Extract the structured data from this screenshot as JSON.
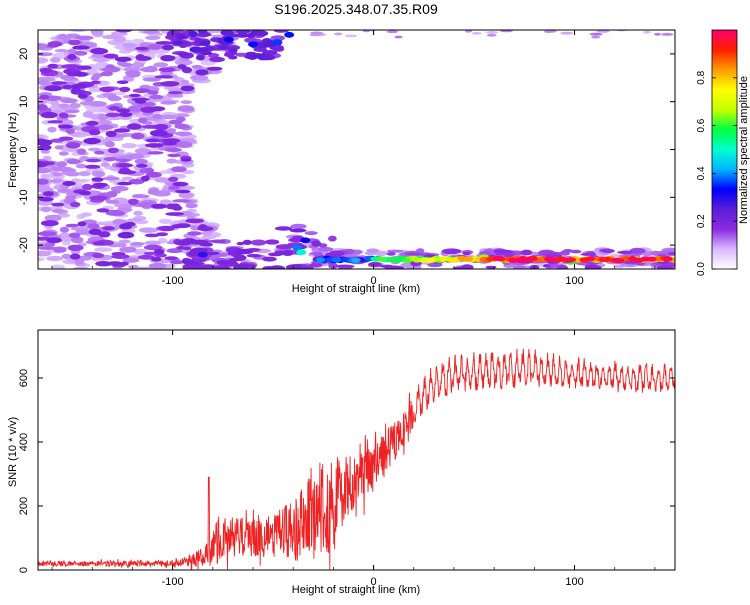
{
  "title": "S196.2025.348.07.35.R09",
  "chart_data": [
    {
      "type": "heatmap",
      "panel": "spectrogram",
      "xlabel": "Height of straight line (km)",
      "ylabel": "Frequency (Hz)",
      "xlim": [
        -167,
        150
      ],
      "ylim": [
        -25,
        25
      ],
      "xticks": [
        -100,
        0,
        100
      ],
      "yticks": [
        -20,
        -10,
        0,
        10,
        20
      ],
      "colorbar": {
        "label": "Normalized spectral amplitude",
        "range": [
          0,
          1
        ],
        "ticks": [
          0.0,
          0.2,
          0.4,
          0.6,
          0.8
        ],
        "colormap": [
          "#ffffff",
          "#d9b8ff",
          "#8a2be2",
          "#5a1ed6",
          "#0000ff",
          "#00b4ff",
          "#00ffd0",
          "#00ff40",
          "#c8ff00",
          "#ffff00",
          "#ff9b00",
          "#ff2000",
          "#ff0070"
        ]
      },
      "features": [
        {
          "name": "low-altitude broadband energy",
          "x_range": [
            -167,
            -95
          ],
          "freq_range": [
            -25,
            25
          ],
          "amplitude": 0.12
        },
        {
          "name": "upper band edge fragments",
          "x_range": [
            -100,
            -40
          ],
          "freq_range": [
            18,
            25
          ],
          "amplitude": 0.2
        },
        {
          "name": "strong low-frequency line",
          "x_range": [
            -30,
            150
          ],
          "freq": -23,
          "amplitude_range": [
            0.2,
            0.95
          ]
        }
      ]
    },
    {
      "type": "line",
      "panel": "snr",
      "xlabel": "Height of straight line (km)",
      "ylabel": "SNR (10 * v/v)",
      "xlim": [
        -167,
        150
      ],
      "ylim": [
        0,
        750
      ],
      "xticks": [
        -100,
        0,
        100
      ],
      "yticks": [
        0,
        200,
        400,
        600
      ],
      "color": "#ee2222",
      "envelope": {
        "x": [
          -167,
          -100,
          -92,
          -85,
          -78,
          -70,
          -60,
          -50,
          -40,
          -35,
          -30,
          -25,
          -20,
          -15,
          -10,
          -5,
          0,
          5,
          10,
          15,
          20,
          25,
          30,
          40,
          50,
          60,
          70,
          80,
          90,
          100,
          110,
          120,
          130,
          140,
          150
        ],
        "mean": [
          20,
          20,
          25,
          40,
          85,
          105,
          100,
          110,
          120,
          150,
          170,
          190,
          210,
          235,
          255,
          285,
          320,
          360,
          400,
          440,
          490,
          540,
          580,
          605,
          615,
          620,
          620,
          620,
          615,
          610,
          605,
          600,
          595,
          595,
          600
        ],
        "amplitude": [
          10,
          12,
          20,
          40,
          90,
          85,
          80,
          90,
          120,
          150,
          160,
          170,
          190,
          150,
          140,
          120,
          100,
          90,
          80,
          70,
          70,
          70,
          80,
          75,
          75,
          75,
          75,
          75,
          65,
          60,
          60,
          60,
          60,
          55,
          55
        ]
      },
      "peak": {
        "x": -82,
        "value": 290
      }
    }
  ]
}
